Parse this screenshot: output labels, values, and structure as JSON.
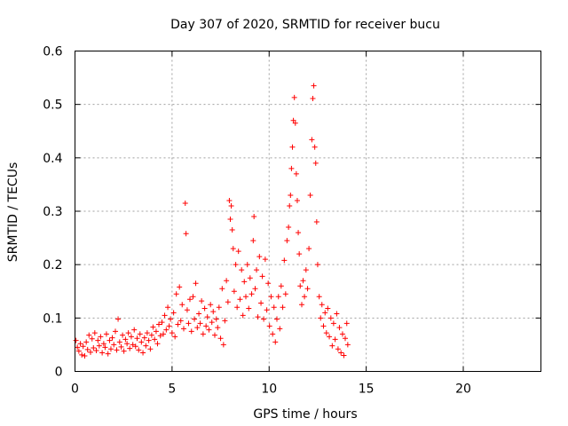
{
  "chart_data": {
    "type": "scatter",
    "title": "Day 307 of 2020, SRMTID for receiver bucu",
    "xlabel": "GPS time / hours",
    "ylabel": "SRMTID / TECUs",
    "xlim": [
      0,
      24
    ],
    "ylim": [
      0,
      0.6
    ],
    "xticks": [
      0,
      5,
      10,
      15,
      20
    ],
    "yticks": [
      0,
      0.1,
      0.2,
      0.3,
      0.4,
      0.5,
      0.6
    ],
    "xtick_labels": [
      "0",
      "5",
      "10",
      "15",
      "20"
    ],
    "ytick_labels": [
      "0",
      "0.1",
      "0.2",
      "0.3",
      "0.4",
      "0.5",
      "0.6"
    ],
    "grid": true,
    "marker": "+",
    "color": "#ff0000",
    "series": [
      {
        "name": "SRMTID",
        "points": [
          [
            0.05,
            0.058
          ],
          [
            0.12,
            0.045
          ],
          [
            0.2,
            0.038
          ],
          [
            0.28,
            0.052
          ],
          [
            0.35,
            0.031
          ],
          [
            0.42,
            0.047
          ],
          [
            0.5,
            0.029
          ],
          [
            0.58,
            0.055
          ],
          [
            0.65,
            0.041
          ],
          [
            0.72,
            0.068
          ],
          [
            0.8,
            0.036
          ],
          [
            0.88,
            0.061
          ],
          [
            0.95,
            0.044
          ],
          [
            1.02,
            0.072
          ],
          [
            1.1,
            0.039
          ],
          [
            1.18,
            0.058
          ],
          [
            1.25,
            0.048
          ],
          [
            1.32,
            0.065
          ],
          [
            1.4,
            0.035
          ],
          [
            1.48,
            0.052
          ],
          [
            1.55,
            0.045
          ],
          [
            1.62,
            0.07
          ],
          [
            1.7,
            0.033
          ],
          [
            1.78,
            0.058
          ],
          [
            1.85,
            0.042
          ],
          [
            1.92,
            0.063
          ],
          [
            2.0,
            0.05
          ],
          [
            2.08,
            0.075
          ],
          [
            2.15,
            0.04
          ],
          [
            2.22,
            0.098
          ],
          [
            2.3,
            0.055
          ],
          [
            2.38,
            0.046
          ],
          [
            2.45,
            0.068
          ],
          [
            2.52,
            0.038
          ],
          [
            2.6,
            0.06
          ],
          [
            2.68,
            0.052
          ],
          [
            2.75,
            0.072
          ],
          [
            2.82,
            0.043
          ],
          [
            2.9,
            0.065
          ],
          [
            2.98,
            0.05
          ],
          [
            3.05,
            0.078
          ],
          [
            3.12,
            0.047
          ],
          [
            3.2,
            0.062
          ],
          [
            3.28,
            0.04
          ],
          [
            3.35,
            0.07
          ],
          [
            3.42,
            0.055
          ],
          [
            3.5,
            0.035
          ],
          [
            3.58,
            0.063
          ],
          [
            3.65,
            0.048
          ],
          [
            3.72,
            0.072
          ],
          [
            3.8,
            0.058
          ],
          [
            3.88,
            0.042
          ],
          [
            3.95,
            0.068
          ],
          [
            4.02,
            0.083
          ],
          [
            4.1,
            0.06
          ],
          [
            4.18,
            0.075
          ],
          [
            4.25,
            0.052
          ],
          [
            4.32,
            0.088
          ],
          [
            4.4,
            0.067
          ],
          [
            4.48,
            0.092
          ],
          [
            4.55,
            0.07
          ],
          [
            4.62,
            0.105
          ],
          [
            4.7,
            0.078
          ],
          [
            4.78,
            0.12
          ],
          [
            4.85,
            0.085
          ],
          [
            4.92,
            0.098
          ],
          [
            5.0,
            0.072
          ],
          [
            5.08,
            0.11
          ],
          [
            5.15,
            0.065
          ],
          [
            5.22,
            0.145
          ],
          [
            5.3,
            0.088
          ],
          [
            5.38,
            0.158
          ],
          [
            5.45,
            0.095
          ],
          [
            5.52,
            0.125
          ],
          [
            5.6,
            0.08
          ],
          [
            5.68,
            0.315
          ],
          [
            5.72,
            0.258
          ],
          [
            5.78,
            0.115
          ],
          [
            5.85,
            0.09
          ],
          [
            5.92,
            0.135
          ],
          [
            6.0,
            0.075
          ],
          [
            6.08,
            0.14
          ],
          [
            6.15,
            0.098
          ],
          [
            6.22,
            0.165
          ],
          [
            6.3,
            0.082
          ],
          [
            6.38,
            0.108
          ],
          [
            6.45,
            0.09
          ],
          [
            6.52,
            0.132
          ],
          [
            6.6,
            0.07
          ],
          [
            6.68,
            0.118
          ],
          [
            6.75,
            0.085
          ],
          [
            6.82,
            0.102
          ],
          [
            6.9,
            0.078
          ],
          [
            6.98,
            0.125
          ],
          [
            7.05,
            0.092
          ],
          [
            7.12,
            0.112
          ],
          [
            7.2,
            0.068
          ],
          [
            7.28,
            0.098
          ],
          [
            7.35,
            0.082
          ],
          [
            7.42,
            0.12
          ],
          [
            7.5,
            0.062
          ],
          [
            7.58,
            0.155
          ],
          [
            7.65,
            0.05
          ],
          [
            7.72,
            0.095
          ],
          [
            7.8,
            0.17
          ],
          [
            7.88,
            0.13
          ],
          [
            7.95,
            0.32
          ],
          [
            8.0,
            0.285
          ],
          [
            8.05,
            0.31
          ],
          [
            8.1,
            0.265
          ],
          [
            8.15,
            0.23
          ],
          [
            8.2,
            0.15
          ],
          [
            8.28,
            0.2
          ],
          [
            8.35,
            0.12
          ],
          [
            8.42,
            0.225
          ],
          [
            8.5,
            0.135
          ],
          [
            8.58,
            0.19
          ],
          [
            8.65,
            0.105
          ],
          [
            8.72,
            0.168
          ],
          [
            8.8,
            0.14
          ],
          [
            8.88,
            0.2
          ],
          [
            8.95,
            0.118
          ],
          [
            9.02,
            0.175
          ],
          [
            9.1,
            0.145
          ],
          [
            9.18,
            0.245
          ],
          [
            9.22,
            0.29
          ],
          [
            9.28,
            0.155
          ],
          [
            9.35,
            0.19
          ],
          [
            9.42,
            0.102
          ],
          [
            9.5,
            0.215
          ],
          [
            9.58,
            0.128
          ],
          [
            9.65,
            0.178
          ],
          [
            9.72,
            0.098
          ],
          [
            9.8,
            0.21
          ],
          [
            9.88,
            0.115
          ],
          [
            9.95,
            0.165
          ],
          [
            10.02,
            0.085
          ],
          [
            10.1,
            0.14
          ],
          [
            10.18,
            0.07
          ],
          [
            10.25,
            0.12
          ],
          [
            10.32,
            0.055
          ],
          [
            10.4,
            0.098
          ],
          [
            10.48,
            0.14
          ],
          [
            10.55,
            0.08
          ],
          [
            10.62,
            0.16
          ],
          [
            10.7,
            0.12
          ],
          [
            10.78,
            0.208
          ],
          [
            10.85,
            0.145
          ],
          [
            10.92,
            0.245
          ],
          [
            11.0,
            0.27
          ],
          [
            11.05,
            0.31
          ],
          [
            11.1,
            0.33
          ],
          [
            11.15,
            0.38
          ],
          [
            11.2,
            0.42
          ],
          [
            11.25,
            0.47
          ],
          [
            11.3,
            0.513
          ],
          [
            11.35,
            0.465
          ],
          [
            11.4,
            0.37
          ],
          [
            11.45,
            0.32
          ],
          [
            11.5,
            0.26
          ],
          [
            11.55,
            0.22
          ],
          [
            11.6,
            0.16
          ],
          [
            11.68,
            0.125
          ],
          [
            11.75,
            0.17
          ],
          [
            11.82,
            0.14
          ],
          [
            11.9,
            0.19
          ],
          [
            11.98,
            0.155
          ],
          [
            12.05,
            0.23
          ],
          [
            12.12,
            0.33
          ],
          [
            12.2,
            0.434
          ],
          [
            12.25,
            0.511
          ],
          [
            12.3,
            0.535
          ],
          [
            12.35,
            0.42
          ],
          [
            12.4,
            0.39
          ],
          [
            12.45,
            0.28
          ],
          [
            12.5,
            0.2
          ],
          [
            12.58,
            0.14
          ],
          [
            12.65,
            0.1
          ],
          [
            12.72,
            0.125
          ],
          [
            12.8,
            0.085
          ],
          [
            12.88,
            0.11
          ],
          [
            12.95,
            0.072
          ],
          [
            13.02,
            0.118
          ],
          [
            13.1,
            0.065
          ],
          [
            13.18,
            0.1
          ],
          [
            13.25,
            0.048
          ],
          [
            13.32,
            0.09
          ],
          [
            13.4,
            0.06
          ],
          [
            13.48,
            0.108
          ],
          [
            13.55,
            0.042
          ],
          [
            13.62,
            0.082
          ],
          [
            13.7,
            0.035
          ],
          [
            13.78,
            0.07
          ],
          [
            13.85,
            0.03
          ],
          [
            13.92,
            0.062
          ],
          [
            14.0,
            0.09
          ],
          [
            14.05,
            0.05
          ]
        ]
      }
    ]
  }
}
